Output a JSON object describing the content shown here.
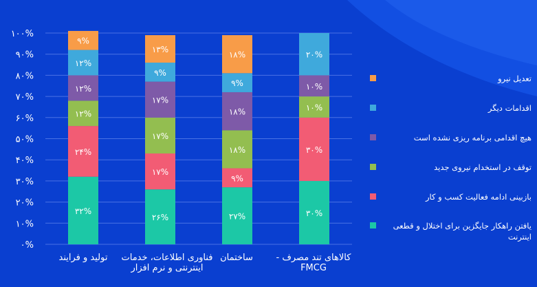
{
  "chart_data": {
    "type": "bar",
    "stacked": true,
    "categories": [
      "تولید و فرآیند",
      "فناوری اطلاعات، خدمات اینترنتی و نرم افزار",
      "ساختمان",
      "کالاهای تند مصرف - FMCG"
    ],
    "series": [
      {
        "name": "یافتن راهکار جایگزین برای اختلال و قطعی اینترنت",
        "color": "#1cc8a6",
        "values": [
          32,
          26,
          27,
          30
        ],
        "labels": [
          "۳۲%",
          "۲۶%",
          "۲۷%",
          "۳۰%"
        ]
      },
      {
        "name": "بازبینی ادامه فعالیت کسب و کار",
        "color": "#f25c74",
        "values": [
          24,
          17,
          9,
          30
        ],
        "labels": [
          "۲۴%",
          "۱۷%",
          "۹%",
          "۳۰%"
        ]
      },
      {
        "name": "توقف در استخدام نیروی جدید",
        "color": "#93be50",
        "values": [
          12,
          17,
          18,
          10
        ],
        "labels": [
          "۱۲%",
          "۱۷%",
          "۱۸%",
          "۱۰%"
        ]
      },
      {
        "name": "هیچ اقدامی برنامه ریزی نشده است",
        "color": "#7e5aa8",
        "values": [
          12,
          17,
          18,
          10
        ],
        "labels": [
          "۱۲%",
          "۱۷%",
          "۱۸%",
          "۱۰%"
        ]
      },
      {
        "name": "اقدامات دیگر",
        "color": "#3fa9dc",
        "values": [
          12,
          9,
          9,
          20
        ],
        "labels": [
          "۱۲%",
          "۹%",
          "۹%",
          "۲۰%"
        ]
      },
      {
        "name": "تعدیل نیرو",
        "color": "#f89c48",
        "values": [
          9,
          13,
          18,
          0
        ],
        "labels": [
          "۹%",
          "۱۳%",
          "۱۸%",
          ""
        ]
      }
    ],
    "yticks": [
      "۰%",
      "۱۰%",
      "۲۰%",
      "۳۰%",
      "۴۰%",
      "۵۰%",
      "۶۰%",
      "۷۰%",
      "۸۰%",
      "۹۰%",
      "۱۰۰%"
    ],
    "ylim": [
      0,
      100
    ],
    "grid": true,
    "legend_position": "right"
  },
  "colors": {
    "background": "#0a3fd0",
    "gridline": "#4a72e4",
    "text": "#ffffff"
  }
}
